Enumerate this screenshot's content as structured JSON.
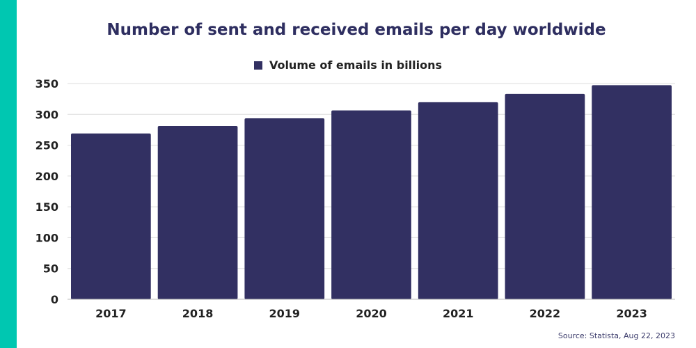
{
  "chart_data": {
    "type": "bar",
    "title": "Number of sent and received emails per day worldwide",
    "categories": [
      "2017",
      "2018",
      "2019",
      "2020",
      "2021",
      "2022",
      "2023"
    ],
    "series": [
      {
        "name": "Volume of emails in billions",
        "values": [
          269,
          281.1,
          293.6,
          306.4,
          319.6,
          333.2,
          347.3
        ]
      }
    ],
    "xlabel": "",
    "ylabel": "",
    "ylim": [
      0,
      350
    ],
    "yticks": [
      0,
      50,
      100,
      150,
      200,
      250,
      300,
      350
    ],
    "grid": true,
    "legend_position": "top-center",
    "colors": {
      "bar": "#323062",
      "accent_stripe": "#00c7b1",
      "title": "#2e2e60",
      "grid": "#dddddd"
    }
  },
  "source": "Source: Statista, Aug 22, 2023"
}
